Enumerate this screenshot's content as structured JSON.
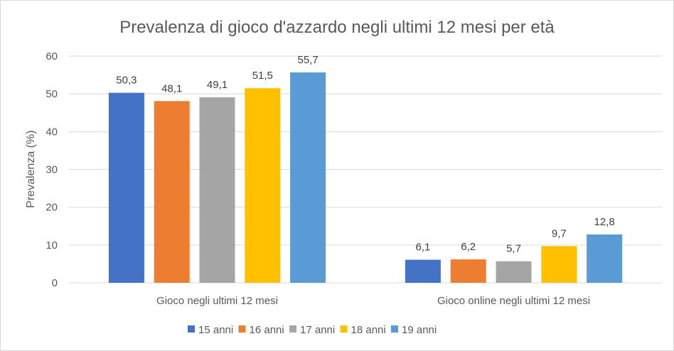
{
  "chart_data": {
    "type": "bar",
    "title": "Prevalenza di gioco d'azzardo negli ultimi 12 mesi per età",
    "xlabel": "",
    "ylabel": "Prevalenza (%)",
    "ylim": [
      0,
      60
    ],
    "yticks": [
      0,
      10,
      20,
      30,
      40,
      50,
      60
    ],
    "grid": true,
    "legend_position": "bottom",
    "categories": [
      "Gioco negli ultimi 12 mesi",
      "Gioco online negli ultimi 12 mesi"
    ],
    "series": [
      {
        "name": "15 anni",
        "color": "#4472c4",
        "values": [
          50.3,
          6.1
        ],
        "labels": [
          "50,3",
          "6,1"
        ]
      },
      {
        "name": "16 anni",
        "color": "#ed7d31",
        "values": [
          48.1,
          6.2
        ],
        "labels": [
          "48,1",
          "6,2"
        ]
      },
      {
        "name": "17 anni",
        "color": "#a5a5a5",
        "values": [
          49.1,
          5.7
        ],
        "labels": [
          "49,1",
          "5,7"
        ]
      },
      {
        "name": "18 anni",
        "color": "#ffc000",
        "values": [
          51.5,
          9.7
        ],
        "labels": [
          "51,5",
          "9,7"
        ]
      },
      {
        "name": "19 anni",
        "color": "#5b9bd5",
        "values": [
          55.7,
          12.8
        ],
        "labels": [
          "55,7",
          "12,8"
        ]
      }
    ]
  }
}
